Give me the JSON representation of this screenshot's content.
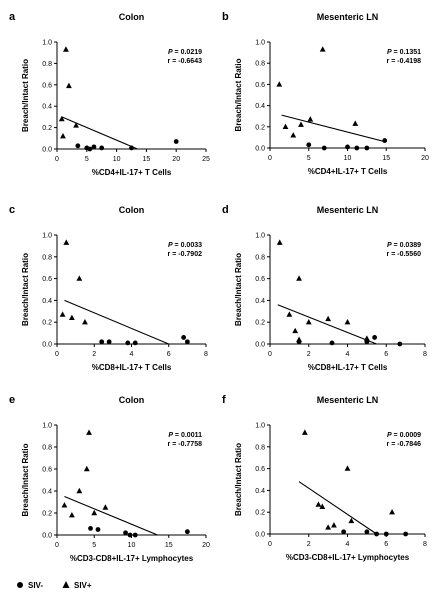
{
  "chart_data": [
    {
      "panel": "a",
      "type": "scatter",
      "title": "Colon",
      "xlabel": "%CD4+IL-17+ T Cells",
      "ylabel": "Breach/Intact Ratio",
      "xlim": [
        0,
        25
      ],
      "ylim": [
        0,
        1.0
      ],
      "xticks": [
        0,
        5,
        10,
        15,
        20,
        25
      ],
      "yticks": [
        0.0,
        0.2,
        0.4,
        0.6,
        0.8,
        1.0
      ],
      "xtick_labels": [
        "0",
        "5",
        "10",
        "15",
        "20",
        "25"
      ],
      "ytick_labels": [
        "0.0",
        "0.2",
        "0.4",
        "0.6",
        "0.8",
        "1.0"
      ],
      "stats": {
        "p": "0.0219",
        "r": "-0.6643"
      },
      "fit_line": {
        "x": [
          0.8,
          13.5
        ],
        "y": [
          0.3,
          0.0
        ]
      },
      "series": [
        {
          "name": "SIV-",
          "marker": "circle",
          "points": [
            [
              3.5,
              0.03
            ],
            [
              5,
              0.01
            ],
            [
              5.5,
              0.0
            ],
            [
              6.2,
              0.02
            ],
            [
              7.5,
              0.01
            ],
            [
              12.5,
              0.01
            ],
            [
              20,
              0.07
            ]
          ]
        },
        {
          "name": "SIV+",
          "marker": "triangle",
          "points": [
            [
              0.8,
              0.28
            ],
            [
              1,
              0.12
            ],
            [
              1.5,
              0.93
            ],
            [
              2,
              0.59
            ],
            [
              3.2,
              0.22
            ]
          ]
        }
      ]
    },
    {
      "panel": "b",
      "type": "scatter",
      "title": "Mesenteric LN",
      "xlabel": "%CD4+IL-17+ T Cells",
      "ylabel": "Breach/Intact Ratio",
      "xlim": [
        0,
        20
      ],
      "ylim": [
        0,
        1.0
      ],
      "xticks": [
        0,
        5,
        10,
        15,
        20
      ],
      "yticks": [
        0.0,
        0.2,
        0.4,
        0.6,
        0.8,
        1.0
      ],
      "xtick_labels": [
        "0",
        "5",
        "10",
        "15",
        "20"
      ],
      "ytick_labels": [
        "0.0",
        "0.2",
        "0.4",
        "0.6",
        "0.8",
        "1.0"
      ],
      "stats": {
        "p": "0.1351",
        "r": "-0.4198"
      },
      "fit_line": {
        "x": [
          1.5,
          14.8
        ],
        "y": [
          0.31,
          0.06
        ]
      },
      "series": [
        {
          "name": "SIV-",
          "marker": "circle",
          "points": [
            [
              5,
              0.03
            ],
            [
              7,
              0.0
            ],
            [
              10,
              0.01
            ],
            [
              11.2,
              0.0
            ],
            [
              12.5,
              0.0
            ],
            [
              14.8,
              0.07
            ]
          ]
        },
        {
          "name": "SIV+",
          "marker": "triangle",
          "points": [
            [
              1.2,
              0.6
            ],
            [
              2,
              0.2
            ],
            [
              3,
              0.12
            ],
            [
              4,
              0.22
            ],
            [
              5.2,
              0.27
            ],
            [
              6.8,
              0.93
            ],
            [
              11,
              0.23
            ]
          ]
        }
      ]
    },
    {
      "panel": "c",
      "type": "scatter",
      "title": "Colon",
      "xlabel": "%CD8+IL-17+ T Cells",
      "ylabel": "Breach/Intact Ratio",
      "xlim": [
        0,
        8
      ],
      "ylim": [
        0,
        1.0
      ],
      "xticks": [
        0,
        2,
        4,
        6,
        8
      ],
      "yticks": [
        0.0,
        0.2,
        0.4,
        0.6,
        0.8,
        1.0
      ],
      "xtick_labels": [
        "0",
        "2",
        "4",
        "6",
        "8"
      ],
      "ytick_labels": [
        "0.0",
        "0.2",
        "0.4",
        "0.6",
        "0.8",
        "1.0"
      ],
      "stats": {
        "p": "0.0033",
        "r": "-0.7902"
      },
      "fit_line": {
        "x": [
          0.4,
          6.0
        ],
        "y": [
          0.4,
          0.0
        ]
      },
      "series": [
        {
          "name": "SIV-",
          "marker": "circle",
          "points": [
            [
              2.4,
              0.02
            ],
            [
              2.8,
              0.02
            ],
            [
              3.8,
              0.01
            ],
            [
              4.2,
              0.01
            ],
            [
              6.8,
              0.06
            ],
            [
              7.0,
              0.02
            ]
          ]
        },
        {
          "name": "SIV+",
          "marker": "triangle",
          "points": [
            [
              0.3,
              0.27
            ],
            [
              0.5,
              0.93
            ],
            [
              0.8,
              0.24
            ],
            [
              1.2,
              0.6
            ],
            [
              1.5,
              0.2
            ]
          ]
        }
      ]
    },
    {
      "panel": "d",
      "type": "scatter",
      "title": "Mesenteric LN",
      "xlabel": "%CD8+IL-17+ T Cells",
      "ylabel": "Breach/Intact Ratio",
      "xlim": [
        0,
        8
      ],
      "ylim": [
        0,
        1.0
      ],
      "xticks": [
        0,
        2,
        4,
        6,
        8
      ],
      "yticks": [
        0.0,
        0.2,
        0.4,
        0.6,
        0.8,
        1.0
      ],
      "xtick_labels": [
        "0",
        "2",
        "4",
        "6",
        "8"
      ],
      "ytick_labels": [
        "0.0",
        "0.2",
        "0.4",
        "0.6",
        "0.8",
        "1.0"
      ],
      "stats": {
        "p": "0.0389",
        "r": "-0.5560"
      },
      "fit_line": {
        "x": [
          0.4,
          5.5
        ],
        "y": [
          0.36,
          0.0
        ]
      },
      "series": [
        {
          "name": "SIV-",
          "marker": "circle",
          "points": [
            [
              1.5,
              0.02
            ],
            [
              3.2,
              0.01
            ],
            [
              5.0,
              0.02
            ],
            [
              5.4,
              0.06
            ],
            [
              6.7,
              0.0
            ]
          ]
        },
        {
          "name": "SIV+",
          "marker": "triangle",
          "points": [
            [
              0.5,
              0.93
            ],
            [
              1.0,
              0.27
            ],
            [
              1.3,
              0.12
            ],
            [
              1.5,
              0.6
            ],
            [
              1.5,
              0.04
            ],
            [
              2.0,
              0.2
            ],
            [
              3.0,
              0.23
            ],
            [
              4.0,
              0.2
            ],
            [
              5.0,
              0.05
            ]
          ]
        }
      ]
    },
    {
      "panel": "e",
      "type": "scatter",
      "title": "Colon",
      "xlabel": "%CD3-CD8+IL-17+ Lymphocytes",
      "ylabel": "Breach/Intact Ratio",
      "xlim": [
        0,
        20
      ],
      "ylim": [
        0,
        1.0
      ],
      "xticks": [
        0,
        5,
        10,
        15,
        20
      ],
      "yticks": [
        0.0,
        0.2,
        0.4,
        0.6,
        0.8,
        1.0
      ],
      "xtick_labels": [
        "0",
        "5",
        "10",
        "15",
        "20"
      ],
      "ytick_labels": [
        "0.0",
        "0.2",
        "0.4",
        "0.6",
        "0.8",
        "1.0"
      ],
      "stats": {
        "p": "0.0011",
        "r": "-0.7758"
      },
      "fit_line": {
        "x": [
          1.0,
          13.5
        ],
        "y": [
          0.35,
          0.0
        ]
      },
      "series": [
        {
          "name": "SIV-",
          "marker": "circle",
          "points": [
            [
              4.5,
              0.06
            ],
            [
              5.5,
              0.05
            ],
            [
              9.2,
              0.02
            ],
            [
              9.8,
              0.0
            ],
            [
              10.5,
              0.0
            ],
            [
              17.5,
              0.03
            ]
          ]
        },
        {
          "name": "SIV+",
          "marker": "triangle",
          "points": [
            [
              1.0,
              0.27
            ],
            [
              2.0,
              0.18
            ],
            [
              3.0,
              0.4
            ],
            [
              4.0,
              0.6
            ],
            [
              4.3,
              0.93
            ],
            [
              5.0,
              0.2
            ],
            [
              6.5,
              0.25
            ]
          ]
        }
      ]
    },
    {
      "panel": "f",
      "type": "scatter",
      "title": "Mesenteric LN",
      "xlabel": "%CD3-CD8+IL-17+ Lymphocytes",
      "ylabel": "Breach/Intact Ratio",
      "xlim": [
        0,
        8
      ],
      "ylim": [
        0,
        1.0
      ],
      "xticks": [
        0,
        2,
        4,
        6,
        8
      ],
      "yticks": [
        0.0,
        0.2,
        0.4,
        0.6,
        0.8,
        1.0
      ],
      "xtick_labels": [
        "0",
        "2",
        "4",
        "6",
        "8"
      ],
      "ytick_labels": [
        "0.0",
        "0.2",
        "0.4",
        "0.6",
        "0.8",
        "1.0"
      ],
      "stats": {
        "p": "0.0009",
        "r": "-0.7846"
      },
      "fit_line": {
        "x": [
          1.5,
          5.5
        ],
        "y": [
          0.48,
          0.0
        ]
      },
      "series": [
        {
          "name": "SIV-",
          "marker": "circle",
          "points": [
            [
              3.8,
              0.02
            ],
            [
              5.0,
              0.02
            ],
            [
              5.5,
              0.0
            ],
            [
              6.0,
              0.0
            ],
            [
              7.0,
              0.0
            ]
          ]
        },
        {
          "name": "SIV+",
          "marker": "triangle",
          "points": [
            [
              1.8,
              0.93
            ],
            [
              2.5,
              0.27
            ],
            [
              2.7,
              0.25
            ],
            [
              3.0,
              0.06
            ],
            [
              3.3,
              0.08
            ],
            [
              4.0,
              0.6
            ],
            [
              4.2,
              0.12
            ],
            [
              6.3,
              0.2
            ]
          ]
        }
      ]
    }
  ],
  "legend": {
    "items": [
      {
        "label": "SIV-",
        "marker": "circle"
      },
      {
        "label": "SIV+",
        "marker": "triangle"
      }
    ]
  }
}
